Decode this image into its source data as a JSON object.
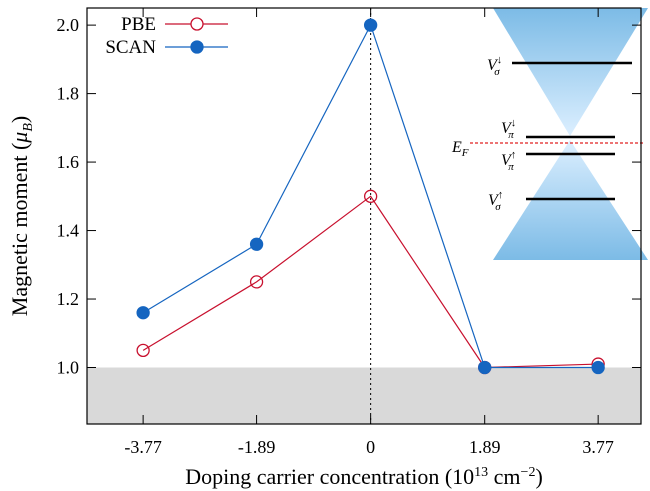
{
  "chart_data": {
    "type": "line",
    "xlabel": [
      "Doping carrier concentration (10",
      "13",
      " cm",
      "−2",
      ")"
    ],
    "ylabel": [
      "Magnetic moment (",
      "μ",
      "B",
      ")"
    ],
    "x": [
      -3.77,
      -1.89,
      0,
      1.89,
      3.77
    ],
    "series": [
      {
        "name": "PBE",
        "color": "#c8102e",
        "marker": "open-circle",
        "values": [
          1.05,
          1.25,
          1.5,
          1.0,
          1.01
        ]
      },
      {
        "name": "SCAN",
        "color": "#1565c0",
        "marker": "filled-circle",
        "values": [
          1.16,
          1.36,
          2.0,
          1.0,
          1.0
        ]
      }
    ],
    "xlim": [
      -4.7,
      4.48
    ],
    "ylim": [
      0.835,
      2.05
    ],
    "xticks": [
      -3.77,
      -1.89,
      0,
      1.89,
      3.77
    ],
    "yticks": [
      {
        "value": 1,
        "label": "1.0"
      },
      1.2,
      1.4,
      1.6,
      1.8,
      {
        "value": 2,
        "label": "2.0"
      }
    ],
    "shade_below": 1.0,
    "vline": 0,
    "legend": "upper-left",
    "inset_labels": [
      {
        "base": "V",
        "sub": "σ",
        "sup": "↓"
      },
      {
        "base": "V",
        "sub": "π",
        "sup": "↓"
      },
      {
        "base": "E",
        "sub": "F"
      },
      {
        "base": "V",
        "sub": "π",
        "sup": "↑"
      },
      {
        "base": "V",
        "sub": "σ",
        "sup": "↑"
      }
    ]
  }
}
